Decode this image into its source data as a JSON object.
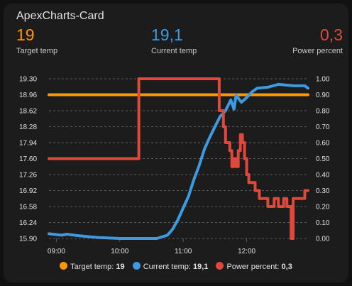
{
  "card": {
    "title": "ApexCharts-Card"
  },
  "header": {
    "target": {
      "value": "19",
      "label": "Target temp",
      "color": "#ff9800"
    },
    "current": {
      "value": "19,1",
      "label": "Current temp",
      "color": "#3d9ae0"
    },
    "power": {
      "value": "0,3",
      "label": "Power percent",
      "color": "#e0483d"
    }
  },
  "legend": [
    {
      "name": "Target temp:",
      "value": "19",
      "color": "#ff9800"
    },
    {
      "name": "Current temp:",
      "value": "19,1",
      "color": "#3d9ae0"
    },
    {
      "name": "Power percent:",
      "value": "0,3",
      "color": "#e0483d"
    }
  ],
  "chart_data": {
    "type": "line",
    "x_ticks": [
      "09:00",
      "10:00",
      "11:00",
      "12:00"
    ],
    "x_range": [
      "08:53",
      "12:58"
    ],
    "y_left": {
      "range": [
        15.9,
        19.3
      ],
      "ticks": [
        "19.30",
        "18.96",
        "18.62",
        "18.28",
        "17.94",
        "17.60",
        "17.26",
        "16.92",
        "16.58",
        "16.24",
        "15.90"
      ]
    },
    "y_right": {
      "range": [
        0,
        1
      ],
      "ticks": [
        "1.00",
        "0.90",
        "0.80",
        "0.70",
        "0.60",
        "0.50",
        "0.40",
        "0.30",
        "0.20",
        "0.10",
        "0.00"
      ]
    },
    "grid": "horizontal dashed",
    "series": [
      {
        "name": "Target temp",
        "color": "#ff9800",
        "axis": "left",
        "curve": "stepline",
        "points": [
          [
            "08:53",
            18.96
          ],
          [
            "12:58",
            18.96
          ]
        ]
      },
      {
        "name": "Current temp",
        "color": "#3d9ae0",
        "axis": "left",
        "curve": "line",
        "points": [
          [
            "08:53",
            16.0
          ],
          [
            "09:05",
            15.97
          ],
          [
            "09:10",
            15.99
          ],
          [
            "09:20",
            15.96
          ],
          [
            "09:40",
            15.92
          ],
          [
            "10:00",
            15.9
          ],
          [
            "10:35",
            15.9
          ],
          [
            "10:45",
            15.97
          ],
          [
            "10:50",
            16.1
          ],
          [
            "10:55",
            16.3
          ],
          [
            "11:00",
            16.55
          ],
          [
            "11:05",
            16.8
          ],
          [
            "11:10",
            17.15
          ],
          [
            "11:15",
            17.45
          ],
          [
            "11:20",
            17.8
          ],
          [
            "11:25",
            18.05
          ],
          [
            "11:30",
            18.28
          ],
          [
            "11:35",
            18.5
          ],
          [
            "11:40",
            18.62
          ],
          [
            "11:45",
            18.85
          ],
          [
            "11:48",
            18.65
          ],
          [
            "11:50",
            18.95
          ],
          [
            "11:55",
            18.8
          ],
          [
            "12:00",
            18.9
          ],
          [
            "12:05",
            19.02
          ],
          [
            "12:10",
            19.1
          ],
          [
            "12:20",
            19.12
          ],
          [
            "12:30",
            19.18
          ],
          [
            "12:45",
            19.15
          ],
          [
            "12:55",
            19.15
          ],
          [
            "12:58",
            19.1
          ]
        ]
      },
      {
        "name": "Power percent",
        "color": "#e0483d",
        "axis": "right",
        "curve": "stepline",
        "points": [
          [
            "08:53",
            0.5
          ],
          [
            "10:17",
            0.5
          ],
          [
            "10:18",
            1.0
          ],
          [
            "11:33",
            1.0
          ],
          [
            "11:34",
            0.8
          ],
          [
            "11:38",
            0.7
          ],
          [
            "11:40",
            0.6
          ],
          [
            "11:44",
            0.55
          ],
          [
            "11:46",
            0.45
          ],
          [
            "11:48",
            0.5
          ],
          [
            "11:50",
            0.45
          ],
          [
            "11:52",
            0.55
          ],
          [
            "11:54",
            0.65
          ],
          [
            "11:56",
            0.6
          ],
          [
            "11:58",
            0.5
          ],
          [
            "12:00",
            0.4
          ],
          [
            "12:02",
            0.35
          ],
          [
            "12:08",
            0.3
          ],
          [
            "12:12",
            0.25
          ],
          [
            "12:20",
            0.2
          ],
          [
            "12:26",
            0.25
          ],
          [
            "12:30",
            0.2
          ],
          [
            "12:35",
            0.25
          ],
          [
            "12:38",
            0.2
          ],
          [
            "12:42",
            0.0
          ],
          [
            "12:44",
            0.25
          ],
          [
            "12:54",
            0.25
          ],
          [
            "12:55",
            0.3
          ],
          [
            "12:58",
            0.3
          ]
        ]
      }
    ]
  }
}
